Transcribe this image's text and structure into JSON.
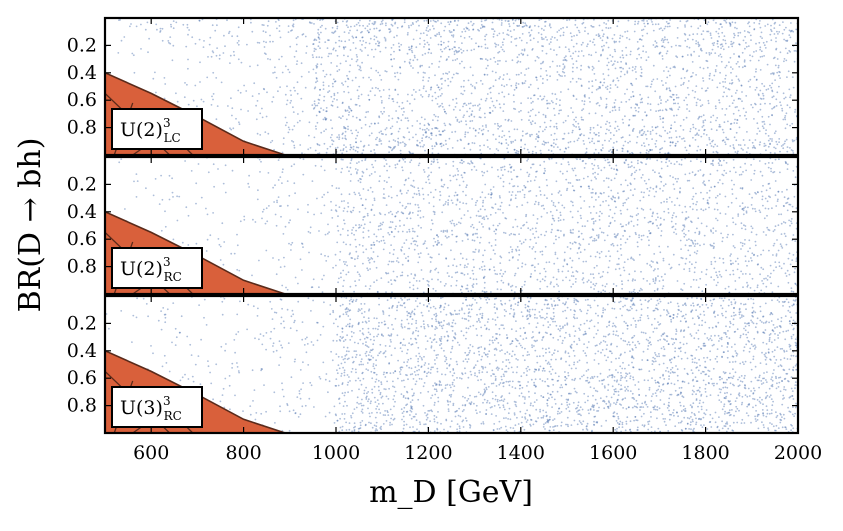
{
  "chart_data": {
    "type": "scatter",
    "figure_layout": "3 vertically stacked panels sharing x axis",
    "xlabel": "m_D [GeV]",
    "ylabel": "BR(D → bh)",
    "xlim": [
      500,
      2000
    ],
    "ylim_inverted": [
      0.0,
      1.0
    ],
    "x_ticks": [
      600,
      800,
      1000,
      1200,
      1400,
      1600,
      1800,
      2000
    ],
    "y_ticks": [
      "0.2",
      "0.4",
      "0.6",
      "0.8"
    ],
    "y_tick_values": [
      0.2,
      0.4,
      0.6,
      0.8
    ],
    "point_color": "#4a6fad",
    "exclusion_color": "#d9603b",
    "exclusion_edge_color": "#5a2a1a",
    "exclusion_region": {
      "description": "excluded region (filled orange) bounded by BR and mass",
      "boundary_x": [
        500,
        500,
        600,
        700,
        800,
        890
      ],
      "boundary_br": [
        1.0,
        0.4,
        0.55,
        0.72,
        0.9,
        1.0
      ]
    },
    "panels": [
      {
        "name": "U2LC",
        "label_base": "U(2)",
        "label_sup": "3",
        "label_sub": "LC",
        "density_note": "sparse below ~950 GeV, dense above 1000 GeV, strongest near BR≈0 and BR≈1",
        "onset_mass": 950
      },
      {
        "name": "U2RC",
        "label_base": "U(2)",
        "label_sup": "3",
        "label_sub": "RC",
        "density_note": "light and uniform, slightly denser above 1000 GeV",
        "onset_mass": 1000
      },
      {
        "name": "U3RC",
        "label_base": "U(3)",
        "label_sup": "3",
        "label_sub": "RC",
        "density_note": "sparse below 1000 GeV, sharp rise in density at 1000 GeV",
        "onset_mass": 1000
      }
    ]
  }
}
